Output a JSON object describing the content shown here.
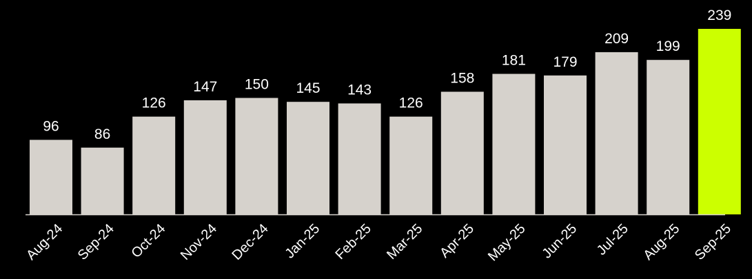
{
  "chart_data": {
    "type": "bar",
    "title": "",
    "xlabel": "",
    "ylabel": "",
    "categories": [
      "Aug-24",
      "Sep-24",
      "Oct-24",
      "Nov-24",
      "Dec-24",
      "Jan-25",
      "Feb-25",
      "Mar-25",
      "Apr-25",
      "May-25",
      "Jun-25",
      "Jul-25",
      "Aug-25",
      "Sep-25"
    ],
    "values": [
      96,
      86,
      126,
      147,
      150,
      145,
      143,
      126,
      158,
      181,
      179,
      209,
      199,
      239
    ],
    "ylim": [
      0,
      239
    ],
    "grid": false,
    "colors": {
      "background": "#000000",
      "bar": "#d6d2cc",
      "highlight": "#ccff00",
      "text": "#ffffff",
      "axis": "#d6d2cc"
    },
    "highlight_category": "Sep-25"
  }
}
